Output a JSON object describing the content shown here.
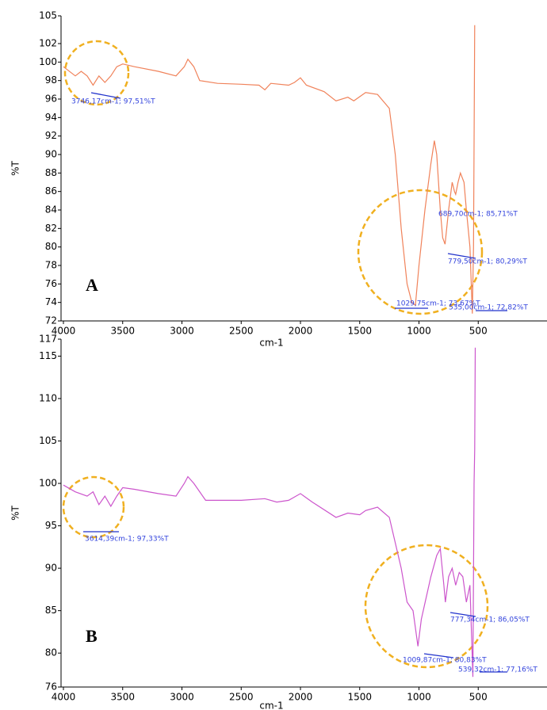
{
  "chart_data": [
    {
      "type": "line",
      "panel_label": "A",
      "xlabel": "cm-1",
      "ylabel": "%T",
      "color": "#f0825a",
      "xlim": [
        4000,
        0
      ],
      "ylim": [
        72,
        105
      ],
      "xticks": [
        4000,
        3500,
        3000,
        2500,
        2000,
        1500,
        1000,
        500
      ],
      "yticks": [
        72,
        74,
        76,
        78,
        80,
        82,
        84,
        86,
        88,
        90,
        92,
        94,
        96,
        98,
        100,
        102,
        105
      ],
      "x": [
        4000,
        3900,
        3850,
        3800,
        3750,
        3700,
        3650,
        3600,
        3550,
        3500,
        3400,
        3200,
        3050,
        2980,
        2950,
        2900,
        2850,
        2700,
        2500,
        2350,
        2300,
        2250,
        2100,
        2050,
        2000,
        1950,
        1800,
        1700,
        1600,
        1550,
        1450,
        1350,
        1250,
        1200,
        1150,
        1100,
        1060,
        1030,
        1000,
        950,
        900,
        870,
        850,
        820,
        800,
        780,
        750,
        720,
        700,
        690,
        670,
        650,
        620,
        600,
        570,
        550,
        540,
        530
      ],
      "values": [
        99.5,
        98.5,
        99,
        98.5,
        97.5,
        98.5,
        97.8,
        98.5,
        99.5,
        99.8,
        99.5,
        99,
        98.5,
        99.5,
        100.3,
        99.5,
        98,
        97.7,
        97.6,
        97.5,
        97,
        97.7,
        97.5,
        97.8,
        98.3,
        97.5,
        96.8,
        95.8,
        96.2,
        95.8,
        96.7,
        96.5,
        95,
        90,
        82,
        76,
        74,
        73.7,
        78,
        84,
        89,
        91.5,
        90,
        84,
        81,
        80.3,
        84,
        87,
        86,
        85.7,
        87,
        88,
        87,
        84,
        80,
        72.8,
        80,
        104
      ],
      "annotations": [
        "3746,17cm-1; 97,51%T",
        "689,70cm-1; 85,71%T",
        "779,50cm-1; 80,29%T",
        "1029,75cm-1; 73,67%T",
        "535,00cm-1; 72,82%T"
      ]
    },
    {
      "type": "line",
      "panel_label": "B",
      "xlabel": "cm-1",
      "ylabel": "%T",
      "color": "#cc55cc",
      "xlim": [
        4000,
        0
      ],
      "ylim": [
        76,
        117
      ],
      "xticks": [
        4000,
        3500,
        3000,
        2500,
        2000,
        1500,
        1000,
        500
      ],
      "yticks": [
        76,
        80,
        85,
        90,
        95,
        100,
        105,
        110,
        115,
        117
      ],
      "x": [
        4000,
        3900,
        3800,
        3750,
        3700,
        3650,
        3600,
        3550,
        3500,
        3400,
        3200,
        3050,
        2980,
        2950,
        2900,
        2800,
        2500,
        2300,
        2200,
        2100,
        2000,
        1900,
        1700,
        1600,
        1500,
        1450,
        1350,
        1250,
        1150,
        1100,
        1050,
        1009,
        980,
        900,
        850,
        820,
        790,
        777,
        750,
        720,
        690,
        660,
        630,
        600,
        570,
        545,
        535,
        530,
        525
      ],
      "values": [
        99.8,
        99,
        98.5,
        99,
        97.5,
        98.5,
        97.3,
        98.5,
        99.5,
        99.3,
        98.8,
        98.5,
        100,
        100.8,
        100,
        98,
        98,
        98.2,
        97.8,
        98,
        98.8,
        97.8,
        96,
        96.5,
        96.3,
        96.8,
        97.2,
        96,
        90,
        86,
        85,
        80.8,
        84,
        89,
        91.5,
        92.3,
        88,
        86,
        89,
        90,
        88,
        89.5,
        89,
        86,
        88,
        77.2,
        100,
        104,
        116
      ],
      "annotations": [
        "3614,39cm-1; 97,33%T",
        "777,34cm-1; 86,05%T",
        "1009,87cm-1; 80,83%T",
        "539,32cm-1; 77,16%T"
      ]
    }
  ]
}
